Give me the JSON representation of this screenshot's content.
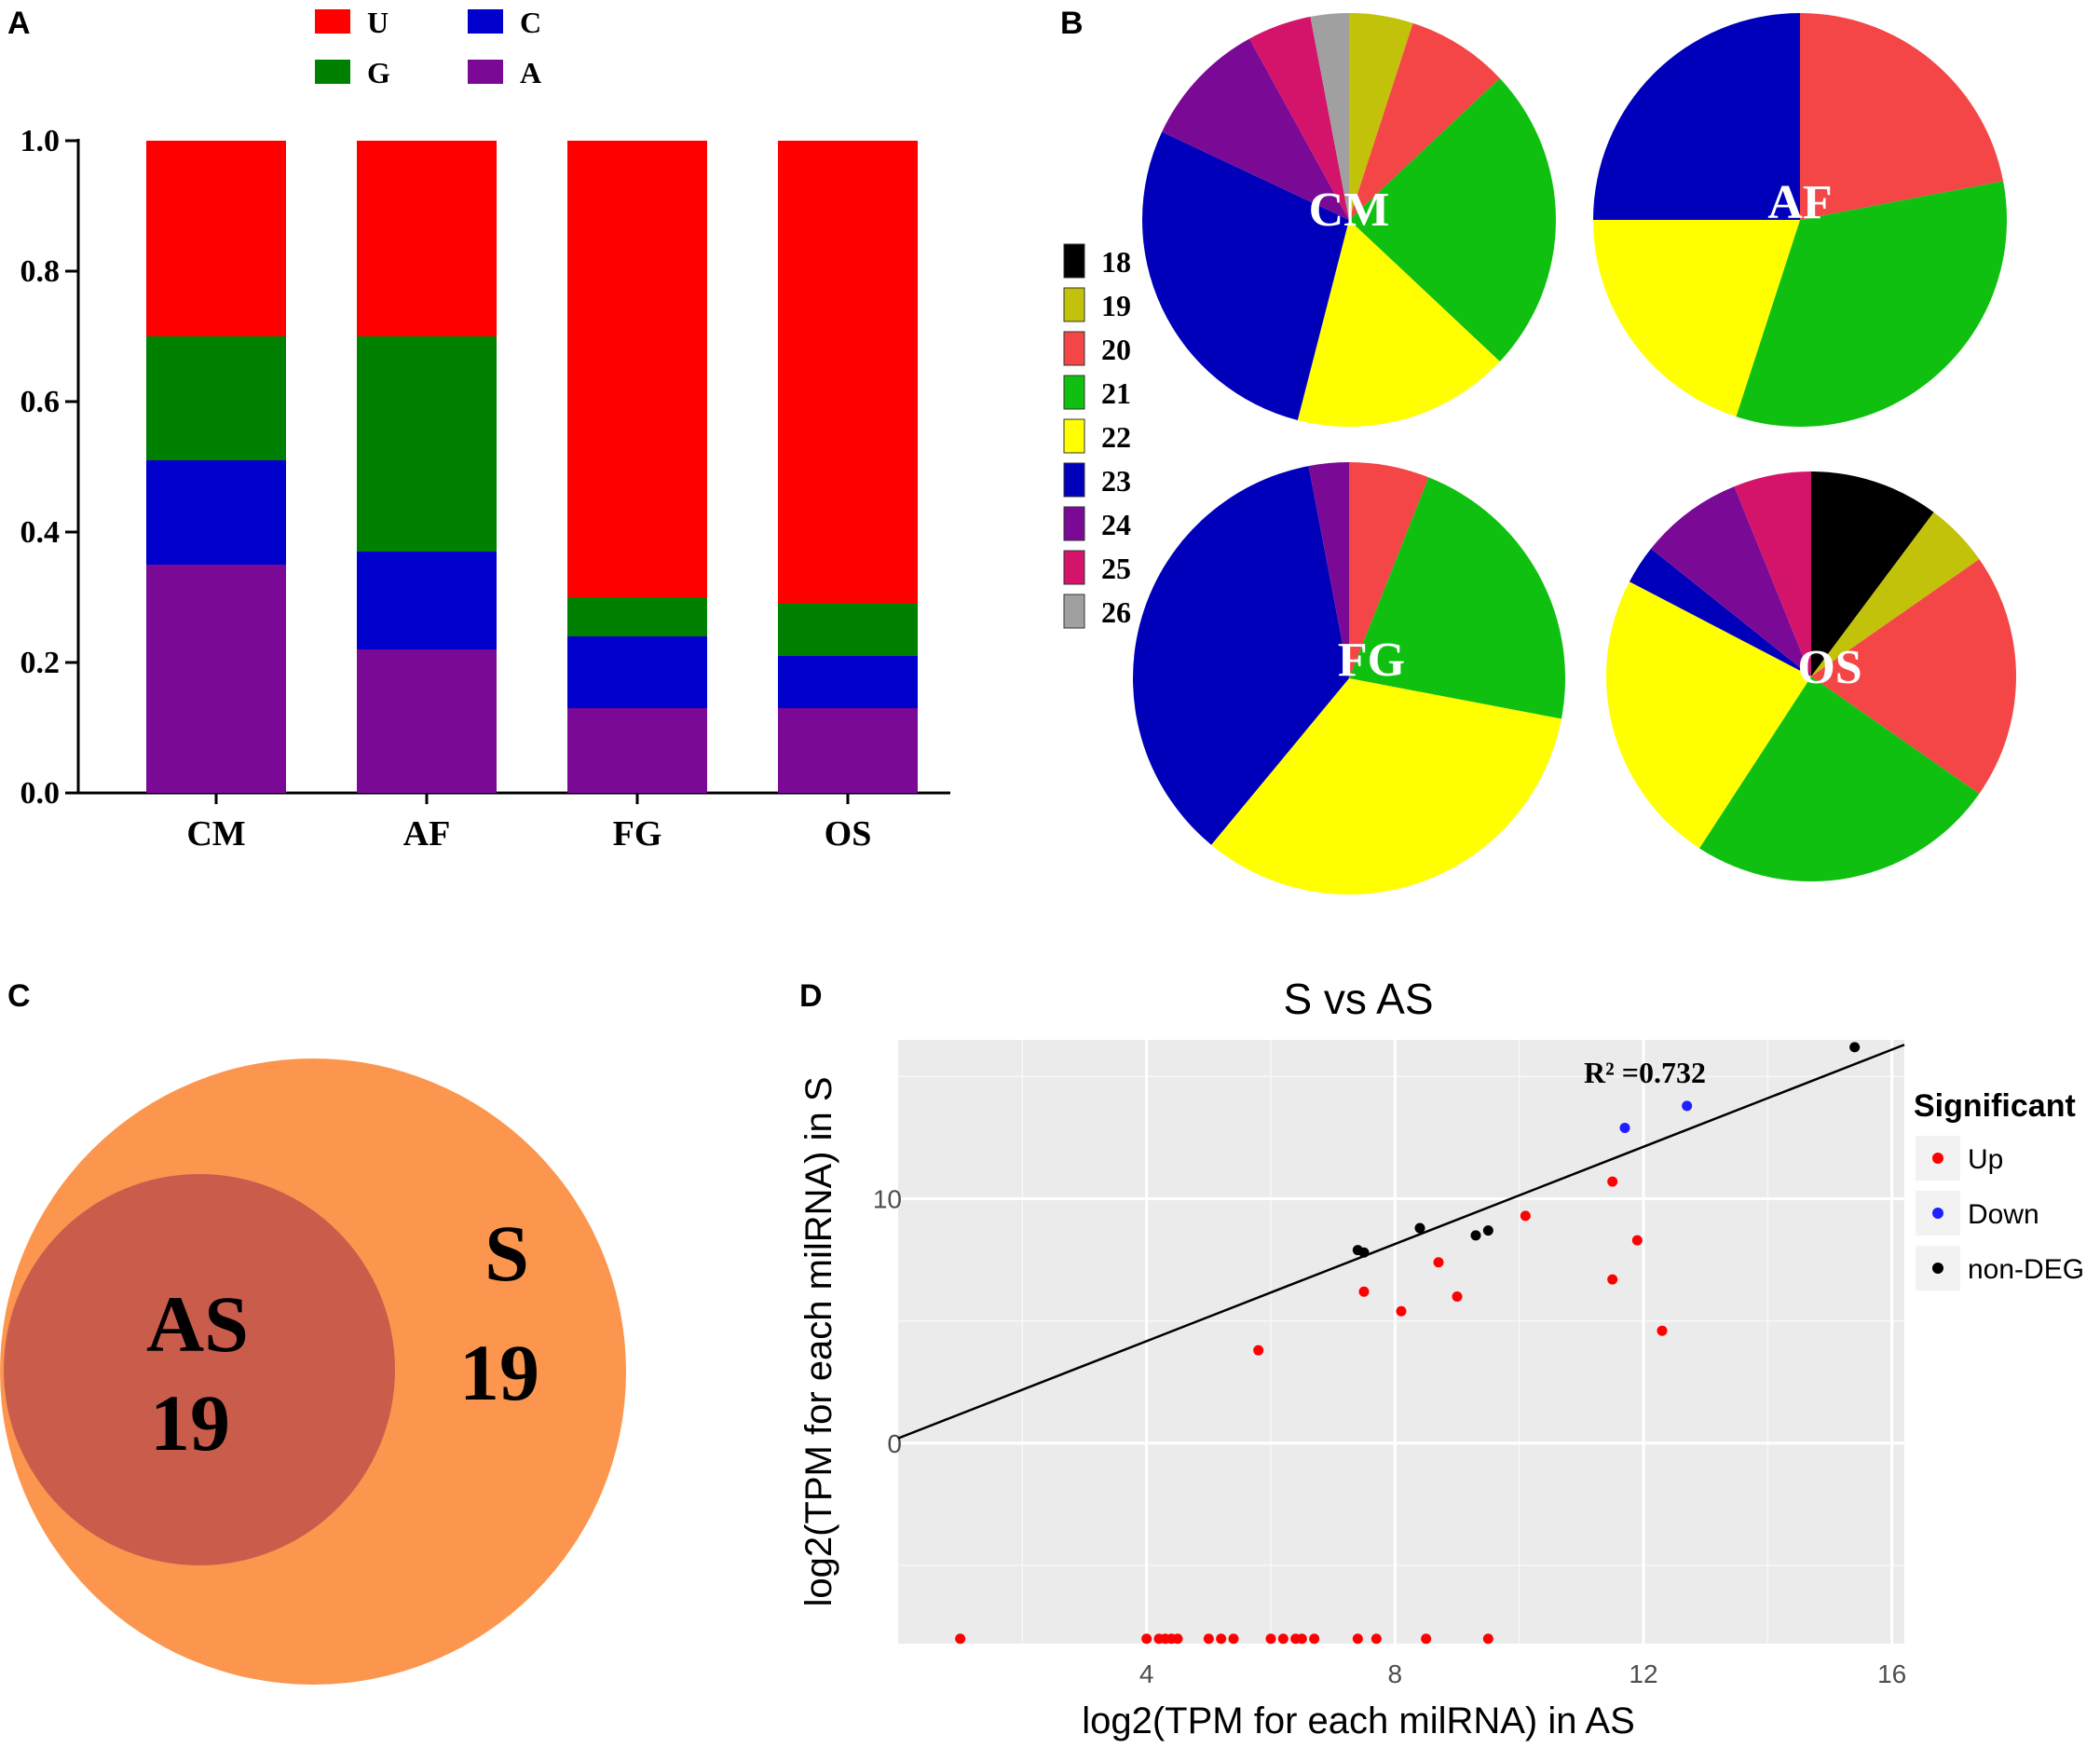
{
  "panel_labels": {
    "a": "A",
    "b": "B",
    "c": "C",
    "d": "D"
  },
  "colors": {
    "U": "#ff0000",
    "G": "#008000",
    "C": "#0000cc",
    "A": "#7a0a96",
    "len18": "#000000",
    "len19": "#c2c20a",
    "len20": "#f44646",
    "len21": "#10c010",
    "len22": "#ffff00",
    "len23": "#0000bb",
    "len24": "#7a0a96",
    "len25": "#d4146a",
    "len26": "#a0a0a0",
    "venn_outer": "#fc964e",
    "venn_inner": "#ca5c4c",
    "scatter_bg": "#ebebeb",
    "up": "#ff0000",
    "down": "#1f1fff",
    "nondeg": "#000000"
  },
  "chart_data": [
    {
      "id": "A",
      "type": "bar",
      "stacked": true,
      "categories": [
        "CM",
        "AF",
        "FG",
        "OS"
      ],
      "ylim": [
        0,
        1.0
      ],
      "yticks": [
        "0.0",
        "0.2",
        "0.4",
        "0.6",
        "0.8",
        "1.0"
      ],
      "legend": [
        "U",
        "C",
        "G",
        "A"
      ],
      "series": [
        {
          "name": "A",
          "values": [
            0.35,
            0.22,
            0.13,
            0.13
          ]
        },
        {
          "name": "C",
          "values": [
            0.16,
            0.15,
            0.11,
            0.08
          ]
        },
        {
          "name": "G",
          "values": [
            0.19,
            0.33,
            0.06,
            0.08
          ]
        },
        {
          "name": "U",
          "values": [
            0.3,
            0.3,
            0.7,
            0.71
          ]
        }
      ]
    },
    {
      "id": "B",
      "type": "pie",
      "legend_title": "",
      "legend": [
        "18",
        "19",
        "20",
        "21",
        "22",
        "23",
        "24",
        "25",
        "26"
      ],
      "pies": [
        {
          "label": "CM",
          "slices": [
            {
              "name": "18",
              "value": 0
            },
            {
              "name": "19",
              "value": 5
            },
            {
              "name": "20",
              "value": 8
            },
            {
              "name": "21",
              "value": 24
            },
            {
              "name": "22",
              "value": 17
            },
            {
              "name": "23",
              "value": 28
            },
            {
              "name": "24",
              "value": 10
            },
            {
              "name": "25",
              "value": 5
            },
            {
              "name": "26",
              "value": 3
            }
          ]
        },
        {
          "label": "AF",
          "slices": [
            {
              "name": "20",
              "value": 22
            },
            {
              "name": "21",
              "value": 33
            },
            {
              "name": "22",
              "value": 20
            },
            {
              "name": "23",
              "value": 25
            }
          ]
        },
        {
          "label": "FG",
          "slices": [
            {
              "name": "20",
              "value": 6
            },
            {
              "name": "21",
              "value": 22
            },
            {
              "name": "22",
              "value": 33
            },
            {
              "name": "23",
              "value": 36
            },
            {
              "name": "24",
              "value": 3
            }
          ]
        },
        {
          "label": "OS",
          "slices": [
            {
              "name": "18",
              "value": 10
            },
            {
              "name": "19",
              "value": 5
            },
            {
              "name": "20",
              "value": 19
            },
            {
              "name": "21",
              "value": 24
            },
            {
              "name": "22",
              "value": 23
            },
            {
              "name": "23",
              "value": 3
            },
            {
              "name": "24",
              "value": 8
            },
            {
              "name": "25",
              "value": 6
            }
          ]
        }
      ]
    },
    {
      "id": "C",
      "type": "venn",
      "sets": [
        {
          "name": "S",
          "count": "19"
        },
        {
          "name": "AS",
          "count": "19"
        }
      ]
    },
    {
      "id": "D",
      "type": "scatter",
      "title": "S vs AS",
      "xlabel": "log2(TPM for each milRNA) in AS",
      "ylabel": "log2(TPM for each milRNA) in S",
      "xlim": [
        0,
        16.2
      ],
      "ylim": [
        -8.2,
        16.5
      ],
      "xticks": [
        "4",
        "8",
        "12",
        "16"
      ],
      "yticks": [
        "0",
        "10"
      ],
      "annotation": "R² =0.732",
      "fit_line": {
        "x": [
          0,
          16.2
        ],
        "y": [
          0.2,
          16.3
        ]
      },
      "legend_title": "Significant",
      "legend": [
        "Up",
        "Down",
        "non-DEG"
      ],
      "series": [
        {
          "name": "Up",
          "points": [
            [
              1.0,
              -8
            ],
            [
              4.0,
              -8
            ],
            [
              4.2,
              -8
            ],
            [
              4.3,
              -8
            ],
            [
              4.4,
              -8
            ],
            [
              4.5,
              -8
            ],
            [
              5.0,
              -8
            ],
            [
              5.2,
              -8
            ],
            [
              5.4,
              -8
            ],
            [
              6.0,
              -8
            ],
            [
              6.2,
              -8
            ],
            [
              6.4,
              -8
            ],
            [
              6.5,
              -8
            ],
            [
              6.7,
              -8
            ],
            [
              7.4,
              -8
            ],
            [
              7.7,
              -8
            ],
            [
              8.5,
              -8
            ],
            [
              9.5,
              -8
            ],
            [
              5.8,
              3.8
            ],
            [
              7.5,
              6.2
            ],
            [
              8.1,
              5.4
            ],
            [
              8.7,
              7.4
            ],
            [
              9.0,
              6.0
            ],
            [
              10.1,
              9.3
            ],
            [
              11.5,
              10.7
            ],
            [
              11.5,
              6.7
            ],
            [
              11.9,
              8.3
            ],
            [
              12.3,
              4.6
            ]
          ]
        },
        {
          "name": "Down",
          "points": [
            [
              11.7,
              12.9
            ],
            [
              12.7,
              13.8
            ]
          ]
        },
        {
          "name": "non-DEG",
          "points": [
            [
              7.4,
              7.9
            ],
            [
              7.5,
              7.8
            ],
            [
              8.4,
              8.8
            ],
            [
              9.3,
              8.5
            ],
            [
              9.5,
              8.7
            ],
            [
              15.4,
              16.2
            ]
          ]
        }
      ]
    }
  ]
}
